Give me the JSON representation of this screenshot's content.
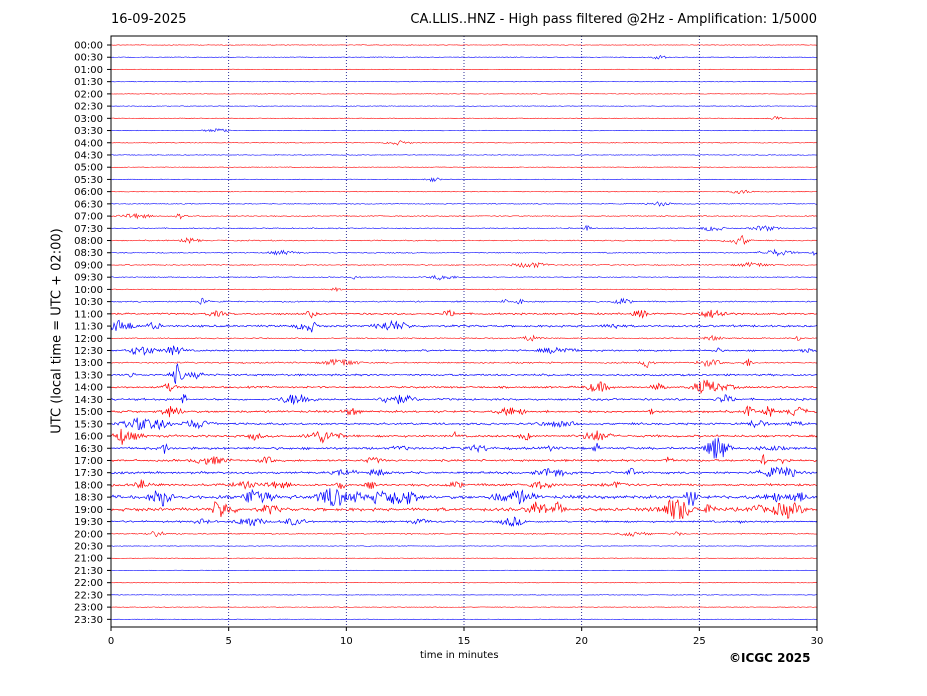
{
  "header": {
    "date": "16-09-2025",
    "title": "CA.LLIS..HNZ - High pass filtered @2Hz - Amplification: 1/5000"
  },
  "footer": {
    "copyright": "©ICGC 2025"
  },
  "chart_data": {
    "type": "line",
    "subtype": "helicorder",
    "xlabel": "time in minutes",
    "ylabel": "UTC (local time = UTC + 02:00)",
    "xlim": [
      0,
      30
    ],
    "x_ticks": [
      "0",
      "5",
      "10",
      "15",
      "20",
      "25",
      "30"
    ],
    "grid": "dotted vertical lines at 5, 10, 15, 20, 25 minutes",
    "trace_colors": [
      "#ff0000",
      "#0000ff"
    ],
    "rows": [
      {
        "label": "00:00",
        "activity": 0.02
      },
      {
        "label": "00:30",
        "activity": 0.05
      },
      {
        "label": "01:00",
        "activity": 0.01
      },
      {
        "label": "01:30",
        "activity": 0.01
      },
      {
        "label": "02:00",
        "activity": 0.01
      },
      {
        "label": "02:30",
        "activity": 0.01
      },
      {
        "label": "03:00",
        "activity": 0.04
      },
      {
        "label": "03:30",
        "activity": 0.05
      },
      {
        "label": "04:00",
        "activity": 0.06
      },
      {
        "label": "04:30",
        "activity": 0.03
      },
      {
        "label": "05:00",
        "activity": 0.03
      },
      {
        "label": "05:30",
        "activity": 0.06
      },
      {
        "label": "06:00",
        "activity": 0.08
      },
      {
        "label": "06:30",
        "activity": 0.08
      },
      {
        "label": "07:00",
        "activity": 0.15
      },
      {
        "label": "07:30",
        "activity": 0.18
      },
      {
        "label": "08:00",
        "activity": 0.2
      },
      {
        "label": "08:30",
        "activity": 0.18
      },
      {
        "label": "09:00",
        "activity": 0.15
      },
      {
        "label": "09:30",
        "activity": 0.12
      },
      {
        "label": "10:00",
        "activity": 0.1
      },
      {
        "label": "10:30",
        "activity": 0.25
      },
      {
        "label": "11:00",
        "activity": 0.35
      },
      {
        "label": "11:30",
        "activity": 0.45
      },
      {
        "label": "12:00",
        "activity": 0.2
      },
      {
        "label": "12:30",
        "activity": 0.35
      },
      {
        "label": "13:00",
        "activity": 0.3
      },
      {
        "label": "13:30",
        "activity": 0.4
      },
      {
        "label": "14:00",
        "activity": 0.4
      },
      {
        "label": "14:30",
        "activity": 0.45
      },
      {
        "label": "15:00",
        "activity": 0.5
      },
      {
        "label": "15:30",
        "activity": 0.45
      },
      {
        "label": "16:00",
        "activity": 0.5
      },
      {
        "label": "16:30",
        "activity": 0.55
      },
      {
        "label": "17:00",
        "activity": 0.45
      },
      {
        "label": "17:30",
        "activity": 0.5
      },
      {
        "label": "18:00",
        "activity": 0.55
      },
      {
        "label": "18:30",
        "activity": 0.85
      },
      {
        "label": "19:00",
        "activity": 0.8
      },
      {
        "label": "19:30",
        "activity": 0.4
      },
      {
        "label": "20:00",
        "activity": 0.2
      },
      {
        "label": "20:30",
        "activity": 0.02
      },
      {
        "label": "21:00",
        "activity": 0.01
      },
      {
        "label": "21:30",
        "activity": 0.01
      },
      {
        "label": "22:00",
        "activity": 0.01
      },
      {
        "label": "22:30",
        "activity": 0.01
      },
      {
        "label": "23:00",
        "activity": 0.01
      },
      {
        "label": "23:30",
        "activity": 0.01
      }
    ]
  }
}
